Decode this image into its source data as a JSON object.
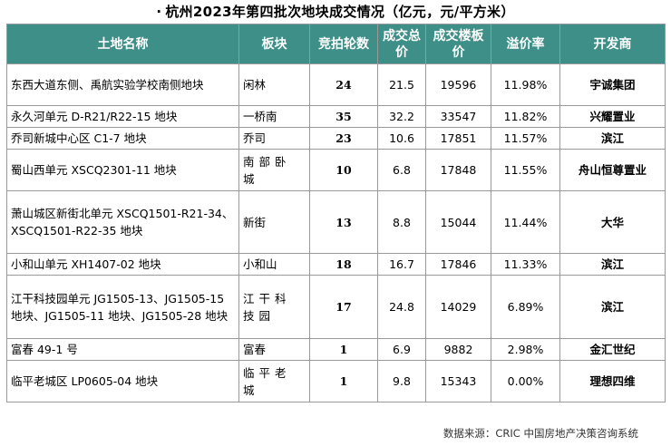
{
  "title": "杭州2023年第四批次地块成交情况（亿元，元/平方米）",
  "title_dot": "·",
  "header_color": "#3d8f87",
  "columns": [
    "土地名称",
    "板块",
    "竞拍轮数",
    "成交总价",
    "成交楼板价",
    "溢价率",
    "开发商"
  ],
  "rows": [
    {
      "name": "东西大道东侧、禹航实验学校南侧地块",
      "block": "闲林",
      "rounds": "24",
      "total": "21.5",
      "floor_price": "19596",
      "premium": "11.98%",
      "developer": "宇诚集团"
    },
    {
      "name": "永久河单元 D-R21/R22-15 地块",
      "block": "一桥南",
      "rounds": "35",
      "total": "32.2",
      "floor_price": "33547",
      "premium": "11.82%",
      "developer": "兴耀置业"
    },
    {
      "name": "乔司新城中心区 C1-7 地块",
      "block": "乔司",
      "rounds": "23",
      "total": "10.6",
      "floor_price": "17851",
      "premium": "11.57%",
      "developer": "滨江"
    },
    {
      "name": "蜀山西单元 XSCQ2301-11 地块",
      "block": "南部卧城",
      "rounds": "10",
      "total": "6.8",
      "floor_price": "17848",
      "premium": "11.55%",
      "developer": "舟山恒尊置业"
    },
    {
      "name": "萧山城区新街北单元 XSCQ1501-R21-34、XSCQ1501-R22-35 地块",
      "block": "新街",
      "rounds": "13",
      "total": "8.8",
      "floor_price": "15044",
      "premium": "11.44%",
      "developer": "大华"
    },
    {
      "name": "小和山单元 XH1407-02 地块",
      "block": "小和山",
      "rounds": "18",
      "total": "16.7",
      "floor_price": "17846",
      "premium": "11.33%",
      "developer": "滨江"
    },
    {
      "name": "江干科技园单元 JG1505-13、JG1505-15 地块、JG1505-11 地块、JG1505-28 地块",
      "block": "江干科技园",
      "rounds": "17",
      "total": "24.8",
      "floor_price": "14029",
      "premium": "6.89%",
      "developer": "滨江"
    },
    {
      "name": "富春 49-1 号",
      "block": "富春",
      "rounds": "1",
      "total": "6.9",
      "floor_price": "9882",
      "premium": "2.98%",
      "developer": "金汇世纪"
    },
    {
      "name": "临平老城区 LP0605-04 地块",
      "block": "临平老城",
      "rounds": "1",
      "total": "9.8",
      "floor_price": "15343",
      "premium": "0.00%",
      "developer": "理想四维"
    }
  ],
  "source": "数据来源：CRIC 中国房地产决策咨询系统"
}
